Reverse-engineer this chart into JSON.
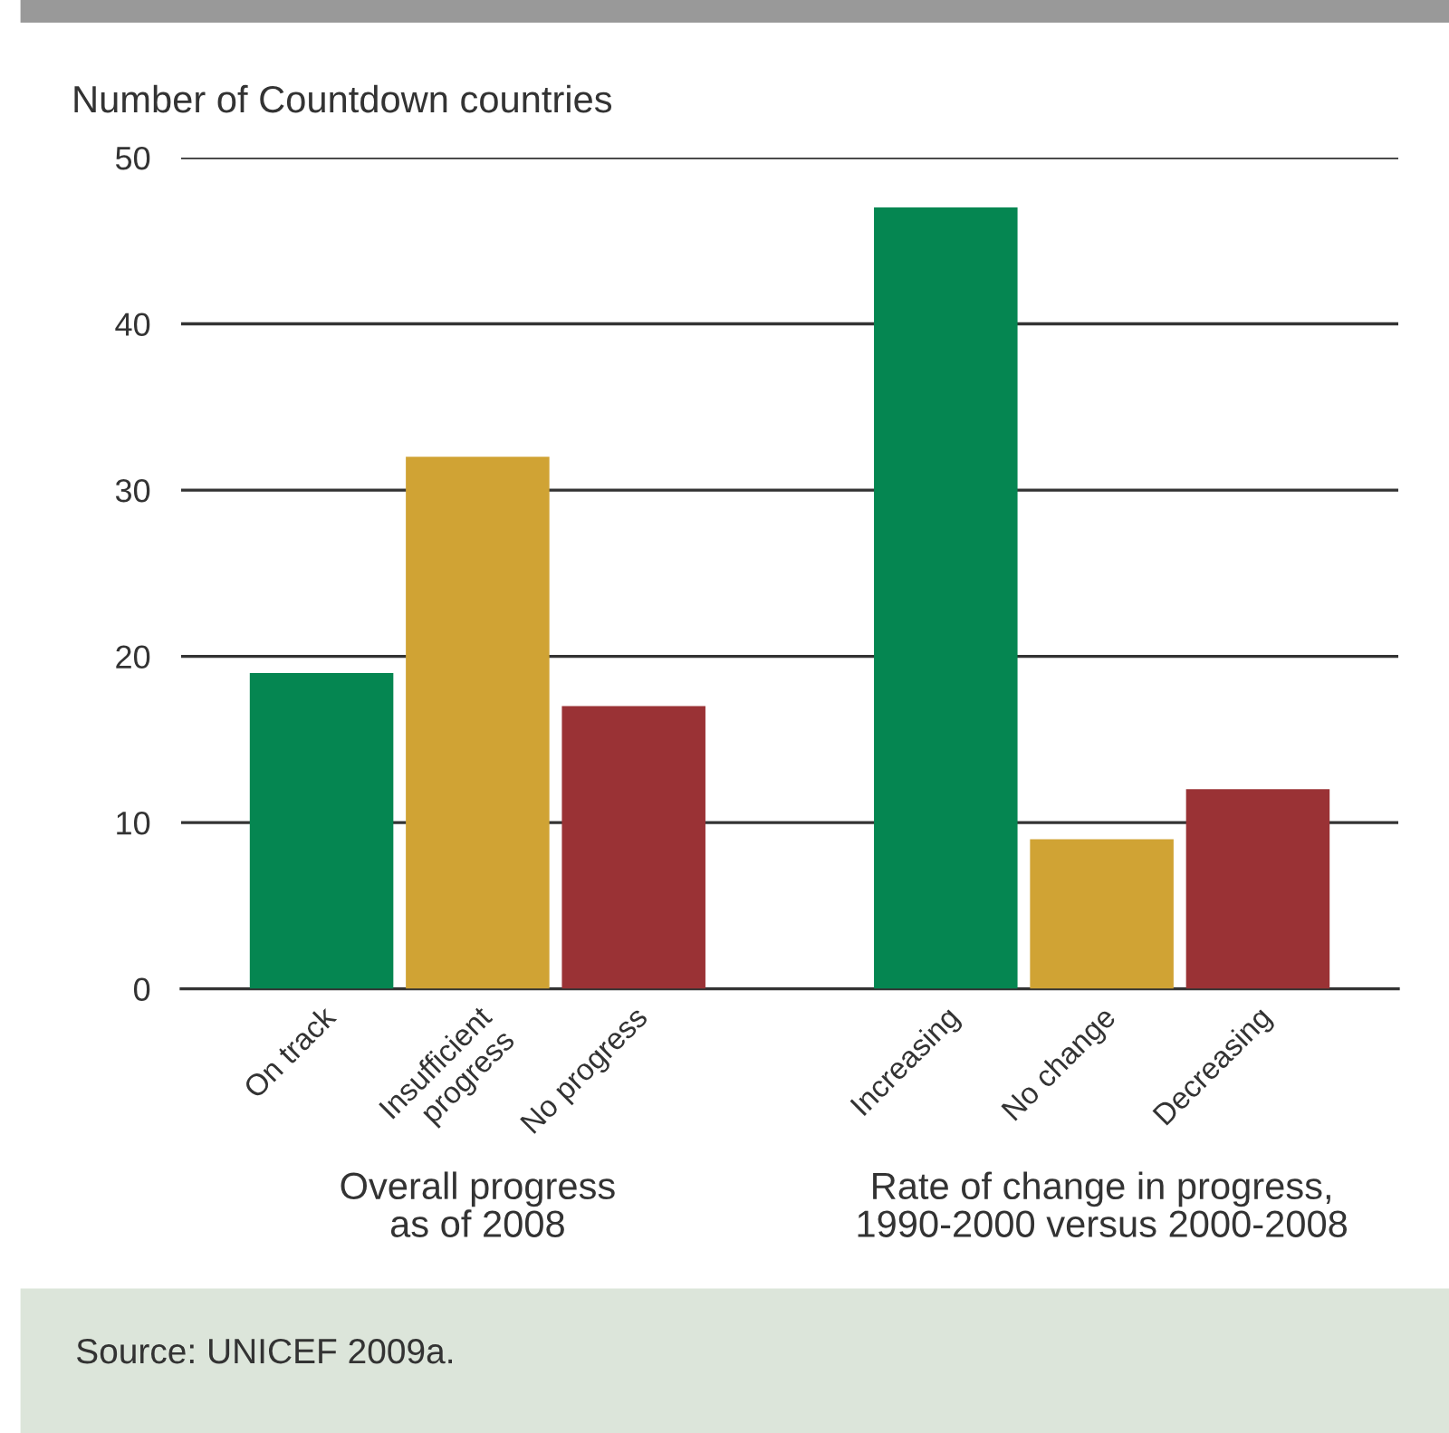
{
  "chart_data": {
    "type": "bar",
    "ylabel": "Number of Countdown countries",
    "categories": [
      "On track",
      "Insufficient\nprogress",
      "No progress",
      null,
      "Increasing",
      "No change",
      "Decreasing"
    ],
    "values": [
      19,
      32,
      17,
      null,
      47,
      9,
      12
    ],
    "colors": [
      "#058651",
      "#d0a334",
      "#9a3235",
      null,
      "#058651",
      "#d0a334",
      "#9a3235"
    ],
    "ylim": [
      0,
      50
    ],
    "yticks": [
      0,
      10,
      20,
      30,
      40,
      50
    ],
    "grid": "y",
    "annotations": [
      "Overall progress\nas of 2008",
      "Rate of change in progress,\n1990-2000 versus 2000-2008",
      "Source: UNICEF 2009a."
    ]
  }
}
